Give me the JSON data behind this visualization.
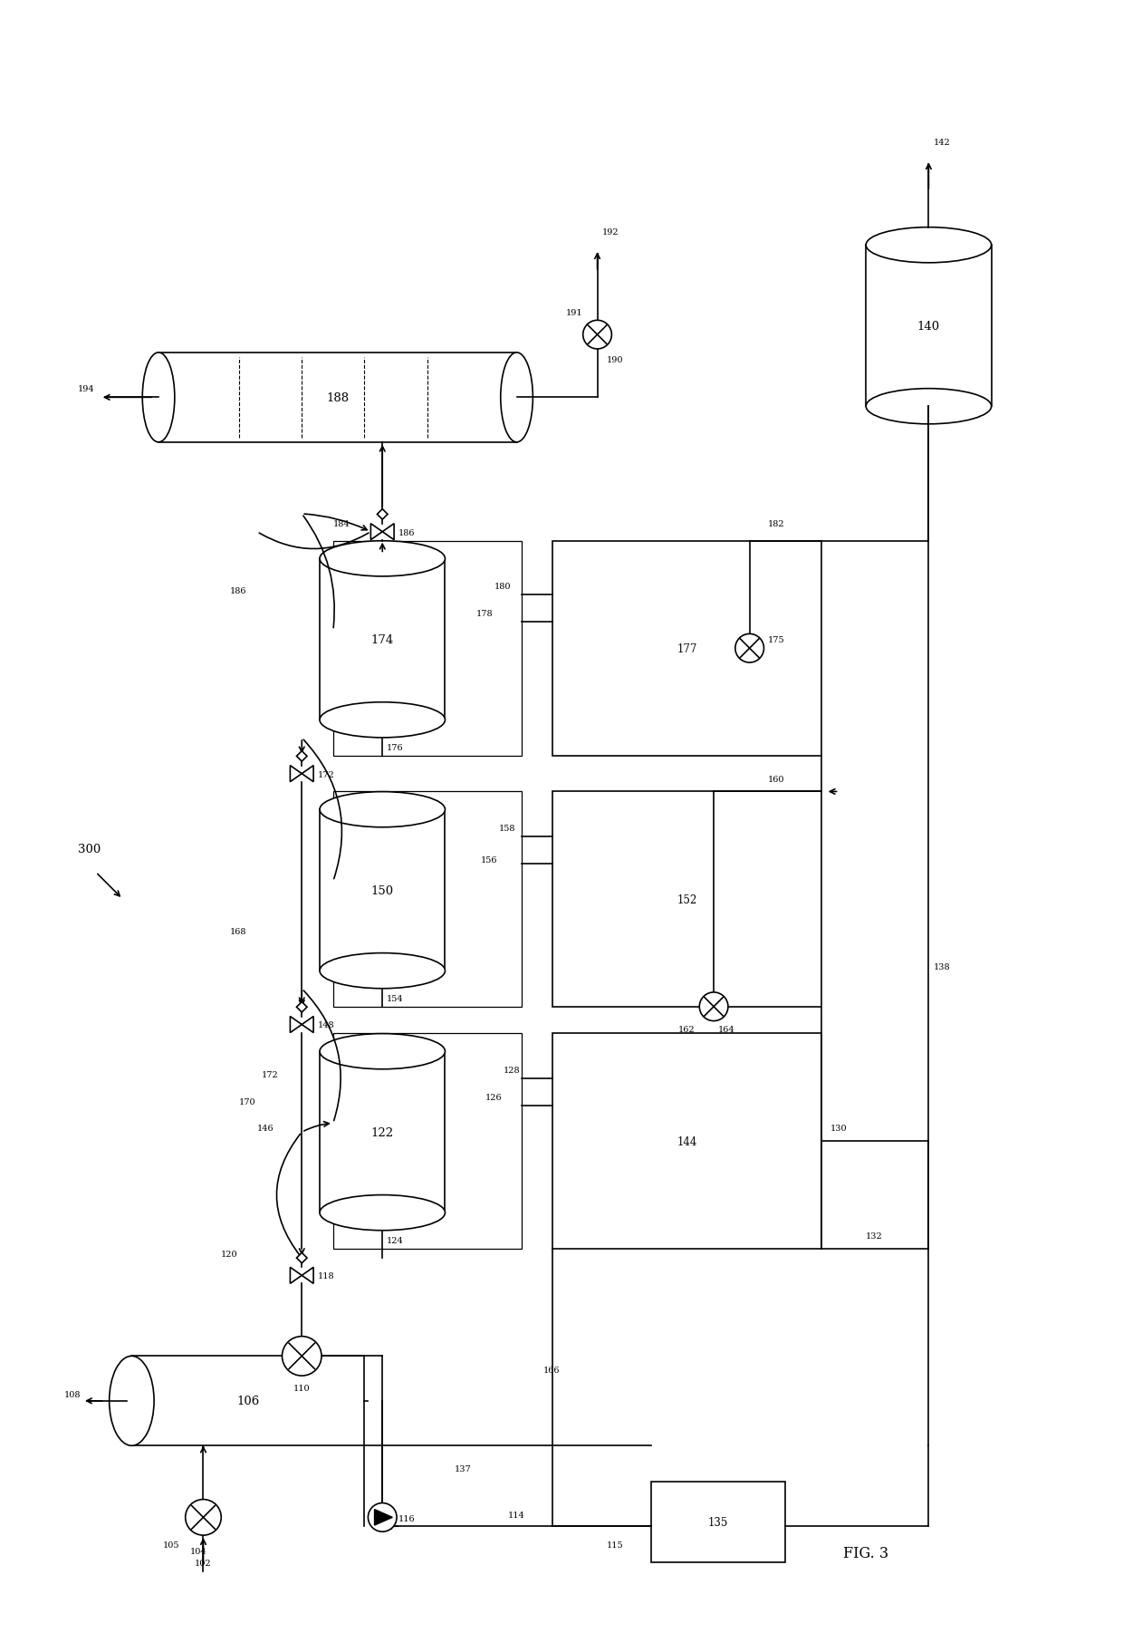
{
  "background_color": "#ffffff",
  "fig_width": 12.4,
  "fig_height": 18.24,
  "title": "FIG. 3",
  "diagram_label": "300"
}
